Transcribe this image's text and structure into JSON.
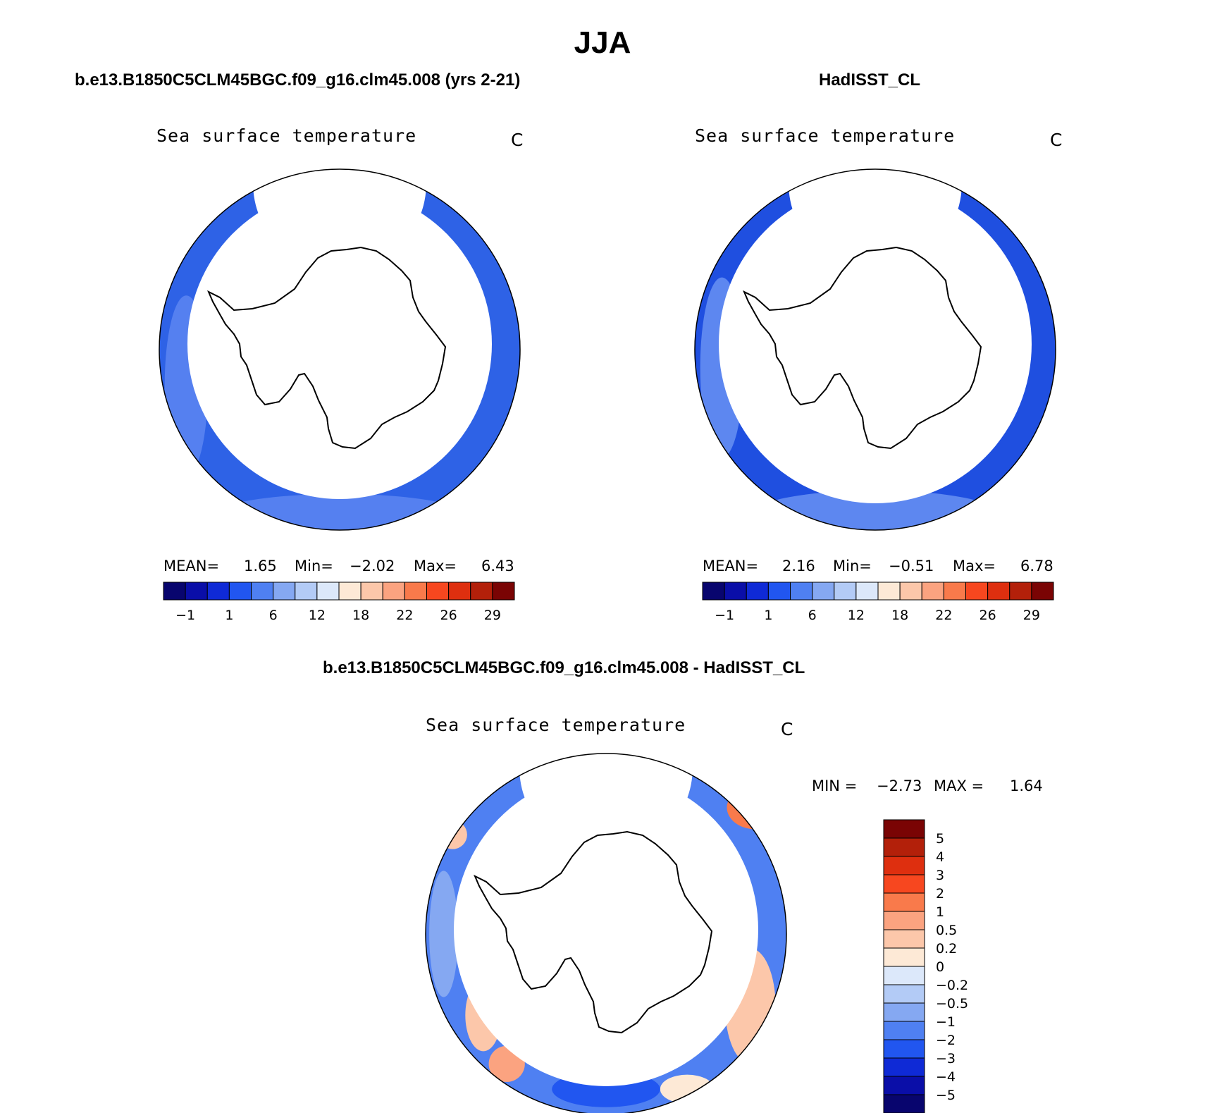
{
  "figure": {
    "title": "JJA",
    "panel_left_heading": "b.e13.B1850C5CLM45BGC.f09_g16.clm45.008 (yrs 2-21)",
    "panel_right_heading": "HadISST_CL",
    "panel_diff_heading": "b.e13.B1850C5CLM45BGC.f09_g16.clm45.008 - HadISST_CL"
  },
  "panels": [
    {
      "id": "model",
      "label": "Sea surface temperature",
      "units": "C",
      "stats": {
        "mean_label": "MEAN=",
        "mean": "1.65",
        "min_label": "Min=",
        "min": "−2.02",
        "max_label": "Max=",
        "max": "6.43"
      }
    },
    {
      "id": "obs",
      "label": "Sea surface temperature",
      "units": "C",
      "stats": {
        "mean_label": "MEAN=",
        "mean": "2.16",
        "min_label": "Min=",
        "min": "−0.51",
        "max_label": "Max=",
        "max": "6.78"
      }
    },
    {
      "id": "diff",
      "label": "Sea surface temperature",
      "units": "C",
      "stats": {
        "min_label": "MIN =",
        "min": "−2.73",
        "max_label": "MAX =",
        "max": "1.64"
      }
    }
  ],
  "colors": {
    "abs_scale": [
      "#08056e",
      "#0a0ea8",
      "#0f2ad6",
      "#2156f0",
      "#4f80f2",
      "#85a8f2",
      "#b3cbf6",
      "#dce8fa",
      "#fde9d6",
      "#fcc7aa",
      "#fba380",
      "#f97a4b",
      "#f7471f",
      "#de2f0f",
      "#b3200a",
      "#7a0404"
    ],
    "diff_scale": [
      "#08056e",
      "#0a0ea8",
      "#0f2ad6",
      "#2156f0",
      "#4f80f2",
      "#85a8f2",
      "#b3cbf6",
      "#dce8fa",
      "#fde9d6",
      "#fcc7aa",
      "#fba380",
      "#f97a4b",
      "#f7471f",
      "#de2f0f",
      "#b3200a",
      "#7a0404"
    ],
    "ocean_model": "#2e62e6",
    "ocean_model_warm": "#5580f0",
    "ocean_obs": "#1f4fe0",
    "ocean_obs_warm": "#5d87f0"
  },
  "chart_data": [
    {
      "type": "heatmap",
      "title": "b.e13.B1850C5CLM45BGC.f09_g16.clm45.008 (yrs 2-21)",
      "variable": "Sea surface temperature",
      "units": "C",
      "projection": "south polar stereographic",
      "mean": 1.65,
      "min": -2.02,
      "max": 6.43,
      "colorbar_levels": [
        -1,
        1,
        6,
        12,
        18,
        22,
        26,
        29
      ],
      "colorbar_tick_labels": [
        "−1",
        "1",
        "6",
        "12",
        "18",
        "22",
        "26",
        "29"
      ]
    },
    {
      "type": "heatmap",
      "title": "HadISST_CL",
      "variable": "Sea surface temperature",
      "units": "C",
      "projection": "south polar stereographic",
      "mean": 2.16,
      "min": -0.51,
      "max": 6.78,
      "colorbar_levels": [
        -1,
        1,
        6,
        12,
        18,
        22,
        26,
        29
      ],
      "colorbar_tick_labels": [
        "−1",
        "1",
        "6",
        "12",
        "18",
        "22",
        "26",
        "29"
      ]
    },
    {
      "type": "heatmap",
      "title": "b.e13.B1850C5CLM45BGC.f09_g16.clm45.008 - HadISST_CL",
      "variable": "Sea surface temperature",
      "units": "C",
      "projection": "south polar stereographic",
      "min": -2.73,
      "max": 1.64,
      "colorbar_levels": [
        5,
        4,
        3,
        2,
        1,
        0.5,
        0.2,
        0,
        -0.2,
        -0.5,
        -1,
        -2,
        -3,
        -4,
        -5
      ],
      "colorbar_tick_labels": [
        "5",
        "4",
        "3",
        "2",
        "1",
        "0.5",
        "0.2",
        "0",
        "−0.2",
        "−0.5",
        "−1",
        "−2",
        "−3",
        "−4",
        "−5"
      ]
    }
  ]
}
